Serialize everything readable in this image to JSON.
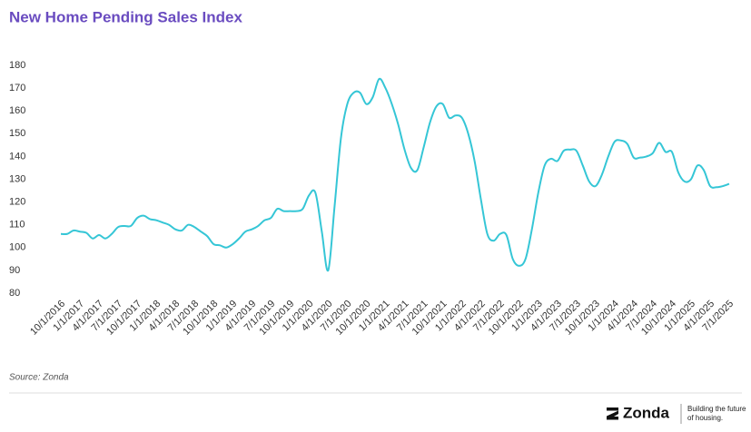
{
  "chart_data": {
    "type": "line",
    "title": "New Home Pending Sales Index",
    "categories": [
      "10/1/2016",
      null,
      null,
      "1/1/2017",
      null,
      null,
      "4/1/2017",
      null,
      null,
      "7/1/2017",
      null,
      null,
      "10/1/2017",
      null,
      null,
      "1/1/2018",
      null,
      null,
      "4/1/2018",
      null,
      null,
      "7/1/2018",
      null,
      null,
      "10/1/2018",
      null,
      null,
      "1/1/2019",
      null,
      null,
      "4/1/2019",
      null,
      null,
      "7/1/2019",
      null,
      null,
      "10/1/2019",
      null,
      null,
      "1/1/2020",
      null,
      null,
      "4/1/2020",
      null,
      null,
      "7/1/2020",
      null,
      null,
      "10/1/2020",
      null,
      null,
      "1/1/2021",
      null,
      null,
      "4/1/2021",
      null,
      null,
      "7/1/2021",
      null,
      null,
      "10/1/2021",
      null,
      null,
      "1/1/2022",
      null,
      null,
      "4/1/2022",
      null,
      null,
      "7/1/2022",
      null,
      null,
      "10/1/2022",
      null,
      null,
      "1/1/2023",
      null,
      null,
      "4/1/2023",
      null,
      null,
      "7/1/2023",
      null,
      null,
      "10/1/2023",
      null,
      null,
      "1/1/2024",
      null,
      null,
      "4/1/2024",
      null,
      null,
      "7/1/2024",
      null,
      null,
      "10/1/2024",
      null,
      null,
      "1/1/2025",
      null,
      null,
      "4/1/2025",
      null,
      null,
      "7/1/2025"
    ],
    "series": [
      {
        "name": "New Home Pending Sales Index",
        "color": "#35c6d6",
        "values": [
          106,
          106,
          107.5,
          107,
          106.5,
          104,
          105.5,
          104,
          106,
          109,
          109.5,
          109.5,
          113,
          114,
          112.5,
          112,
          111,
          110,
          108,
          107.5,
          110,
          109,
          107,
          105,
          101.5,
          101,
          100,
          101.5,
          104,
          107,
          108,
          109.5,
          112,
          113,
          117,
          116,
          116,
          116,
          117,
          123,
          124,
          107,
          90,
          118,
          148,
          163,
          168,
          168,
          163,
          166,
          174,
          170,
          163,
          154,
          143,
          135,
          134,
          144,
          155,
          162,
          163,
          157,
          158,
          157,
          150,
          138,
          121,
          106,
          103,
          106,
          105.5,
          95,
          92,
          95,
          108,
          124,
          136,
          139,
          138,
          142.5,
          143,
          142.5,
          136,
          129,
          127,
          132,
          140,
          146.5,
          147,
          145.5,
          139.5,
          139.5,
          140,
          141.5,
          146,
          142,
          142,
          133,
          129,
          130,
          136,
          134,
          127,
          126.5,
          127,
          128
        ]
      }
    ],
    "ylim": [
      80,
      180
    ],
    "yticks": [
      80,
      90,
      100,
      110,
      120,
      130,
      140,
      150,
      160,
      170,
      180
    ],
    "grid": false,
    "source": "Source: Zonda"
  },
  "footer": {
    "brand": "Zonda",
    "tagline": [
      "Building the future",
      "of housing."
    ]
  }
}
